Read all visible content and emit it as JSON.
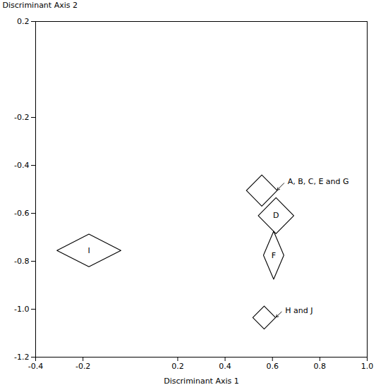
{
  "chart_data": {
    "type": "diamond",
    "xlabel": "Discriminant Axis 1",
    "ylabel": "Discriminant Axis 2",
    "xlim": [
      -0.4,
      1.0
    ],
    "ylim": [
      -1.2,
      0.2
    ],
    "xticks": [
      -0.4,
      -0.2,
      0.2,
      0.4,
      0.6,
      0.8,
      {
        "value": 1.0,
        "label": "1.0"
      }
    ],
    "yticks": [
      0.2,
      -0.2,
      -0.4,
      -0.6,
      -0.8,
      {
        "value": -1.0,
        "label": "-1.0"
      },
      -1.2
    ],
    "grid": false,
    "color": "#000000",
    "shapes": [
      {
        "label": "I",
        "cx": -0.175,
        "cy": -0.755,
        "half_w": 0.135,
        "half_h": 0.068
      },
      {
        "label": "A, B, C, E and G",
        "cx": 0.555,
        "cy": -0.505,
        "half_w": 0.065,
        "half_h": 0.065,
        "annotation": {
          "xy": [
            0.618,
            -0.505
          ],
          "xytext": [
            0.655,
            -0.468
          ]
        }
      },
      {
        "label": "D",
        "cx": 0.615,
        "cy": -0.61,
        "half_w": 0.075,
        "half_h": 0.075
      },
      {
        "label": "F",
        "cx": 0.605,
        "cy": -0.775,
        "half_w": 0.043,
        "half_h": 0.1
      },
      {
        "label": "H and J",
        "cx": 0.565,
        "cy": -1.035,
        "half_w": 0.048,
        "half_h": 0.048,
        "annotation": {
          "xy": [
            0.613,
            -1.035
          ],
          "xytext": [
            0.645,
            -1.005
          ]
        }
      }
    ]
  }
}
